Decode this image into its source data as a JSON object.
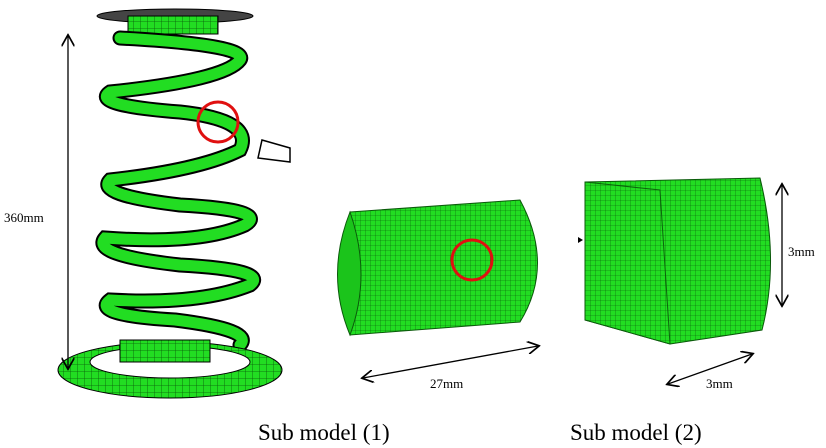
{
  "dimensions": {
    "spring_height": "360mm",
    "sub1_length": "27mm",
    "sub2_height": "3mm",
    "sub2_width": "3mm"
  },
  "captions": [
    "Sub model (1)",
    "Sub model (2)"
  ]
}
